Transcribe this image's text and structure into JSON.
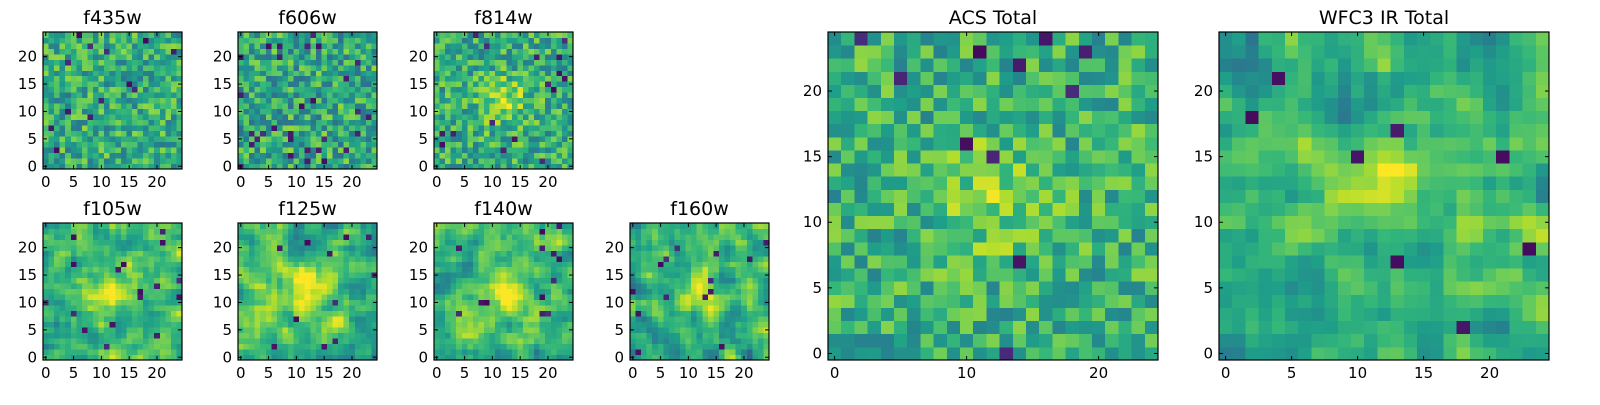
{
  "figure": {
    "background": "#ffffff",
    "colormap": "viridis"
  },
  "chart_data": [
    {
      "id": "f435w",
      "type": "heatmap",
      "title": "f435w",
      "grid_size": 25,
      "xlim": [
        -0.5,
        24.5
      ],
      "ylim": [
        -0.5,
        24.5
      ],
      "xticks": [
        0,
        5,
        10,
        15,
        20
      ],
      "yticks": [
        0,
        5,
        10,
        15,
        20
      ],
      "x_tick_labels": [
        "0",
        "5",
        "10",
        "15",
        "20"
      ],
      "y_tick_labels": [
        "0",
        "5",
        "10",
        "15",
        "20"
      ],
      "pattern": "noise",
      "seed": 11,
      "mean": 0.62,
      "spread": 0.22,
      "peak": 0.0,
      "dark_fraction": 0.03
    },
    {
      "id": "f606w",
      "type": "heatmap",
      "title": "f606w",
      "grid_size": 25,
      "xlim": [
        -0.5,
        24.5
      ],
      "ylim": [
        -0.5,
        24.5
      ],
      "xticks": [
        0,
        5,
        10,
        15,
        20
      ],
      "yticks": [
        0,
        5,
        10,
        15,
        20
      ],
      "x_tick_labels": [
        "0",
        "5",
        "10",
        "15",
        "20"
      ],
      "y_tick_labels": [
        "0",
        "5",
        "10",
        "15",
        "20"
      ],
      "pattern": "noise",
      "seed": 23,
      "mean": 0.6,
      "spread": 0.24,
      "peak": 0.0,
      "dark_fraction": 0.04
    },
    {
      "id": "f814w",
      "type": "heatmap",
      "title": "f814w",
      "grid_size": 25,
      "xlim": [
        -0.5,
        24.5
      ],
      "ylim": [
        -0.5,
        24.5
      ],
      "xticks": [
        0,
        5,
        10,
        15,
        20
      ],
      "yticks": [
        0,
        5,
        10,
        15,
        20
      ],
      "x_tick_labels": [
        "0",
        "5",
        "10",
        "15",
        "20"
      ],
      "y_tick_labels": [
        "0",
        "5",
        "10",
        "15",
        "20"
      ],
      "pattern": "noise",
      "seed": 37,
      "mean": 0.62,
      "spread": 0.22,
      "peak": 0.25,
      "dark_fraction": 0.03
    },
    {
      "id": "f105w",
      "type": "heatmap",
      "title": "f105w",
      "grid_size": 25,
      "xlim": [
        -0.5,
        24.5
      ],
      "ylim": [
        -0.5,
        24.5
      ],
      "xticks": [
        0,
        5,
        10,
        15,
        20
      ],
      "yticks": [
        0,
        5,
        10,
        15,
        20
      ],
      "x_tick_labels": [
        "0",
        "5",
        "10",
        "15",
        "20"
      ],
      "y_tick_labels": [
        "0",
        "5",
        "10",
        "15",
        "20"
      ],
      "pattern": "smooth",
      "seed": 41,
      "mean": 0.66,
      "spread": 0.2,
      "peak": 0.3,
      "dark_fraction": 0.02
    },
    {
      "id": "f125w",
      "type": "heatmap",
      "title": "f125w",
      "grid_size": 25,
      "xlim": [
        -0.5,
        24.5
      ],
      "ylim": [
        -0.5,
        24.5
      ],
      "xticks": [
        0,
        5,
        10,
        15,
        20
      ],
      "yticks": [
        0,
        5,
        10,
        15,
        20
      ],
      "x_tick_labels": [
        "0",
        "5",
        "10",
        "15",
        "20"
      ],
      "y_tick_labels": [
        "0",
        "5",
        "10",
        "15",
        "20"
      ],
      "pattern": "smooth",
      "seed": 53,
      "mean": 0.68,
      "spread": 0.2,
      "peak": 0.3,
      "dark_fraction": 0.02
    },
    {
      "id": "f140w",
      "type": "heatmap",
      "title": "f140w",
      "grid_size": 25,
      "xlim": [
        -0.5,
        24.5
      ],
      "ylim": [
        -0.5,
        24.5
      ],
      "xticks": [
        0,
        5,
        10,
        15,
        20
      ],
      "yticks": [
        0,
        5,
        10,
        15,
        20
      ],
      "x_tick_labels": [
        "0",
        "5",
        "10",
        "15",
        "20"
      ],
      "y_tick_labels": [
        "0",
        "5",
        "10",
        "15",
        "20"
      ],
      "pattern": "smooth",
      "seed": 67,
      "mean": 0.68,
      "spread": 0.2,
      "peak": 0.28,
      "dark_fraction": 0.02
    },
    {
      "id": "f160w",
      "type": "heatmap",
      "title": "f160w",
      "grid_size": 25,
      "xlim": [
        -0.5,
        24.5
      ],
      "ylim": [
        -0.5,
        24.5
      ],
      "xticks": [
        0,
        5,
        10,
        15,
        20
      ],
      "yticks": [
        0,
        5,
        10,
        15,
        20
      ],
      "x_tick_labels": [
        "0",
        "5",
        "10",
        "15",
        "20"
      ],
      "y_tick_labels": [
        "0",
        "5",
        "10",
        "15",
        "20"
      ],
      "pattern": "smooth",
      "seed": 79,
      "mean": 0.64,
      "spread": 0.22,
      "peak": 0.3,
      "dark_fraction": 0.03
    },
    {
      "id": "acs-total",
      "type": "heatmap",
      "title": "ACS Total",
      "grid_size": 25,
      "xlim": [
        -0.5,
        24.5
      ],
      "ylim": [
        -0.5,
        24.5
      ],
      "xticks": [
        0,
        10,
        20
      ],
      "yticks": [
        0,
        5,
        10,
        15,
        20
      ],
      "x_tick_labels": [
        "0",
        "10",
        "20"
      ],
      "y_tick_labels": [
        "0",
        "5",
        "10",
        "15",
        "20"
      ],
      "pattern": "noise",
      "seed": 97,
      "mean": 0.64,
      "spread": 0.2,
      "peak": 0.18,
      "dark_fraction": 0.025
    },
    {
      "id": "wfc3-total",
      "type": "heatmap",
      "title": "WFC3 IR Total",
      "grid_size": 25,
      "xlim": [
        -0.5,
        24.5
      ],
      "ylim": [
        -0.5,
        24.5
      ],
      "xticks": [
        0,
        5,
        10,
        15,
        20
      ],
      "yticks": [
        0,
        5,
        10,
        15,
        20
      ],
      "x_tick_labels": [
        "0",
        "5",
        "10",
        "15",
        "20"
      ],
      "y_tick_labels": [
        "0",
        "5",
        "10",
        "15",
        "20"
      ],
      "pattern": "smooth",
      "seed": 109,
      "mean": 0.62,
      "spread": 0.2,
      "peak": 0.38,
      "dark_fraction": 0.02
    }
  ]
}
